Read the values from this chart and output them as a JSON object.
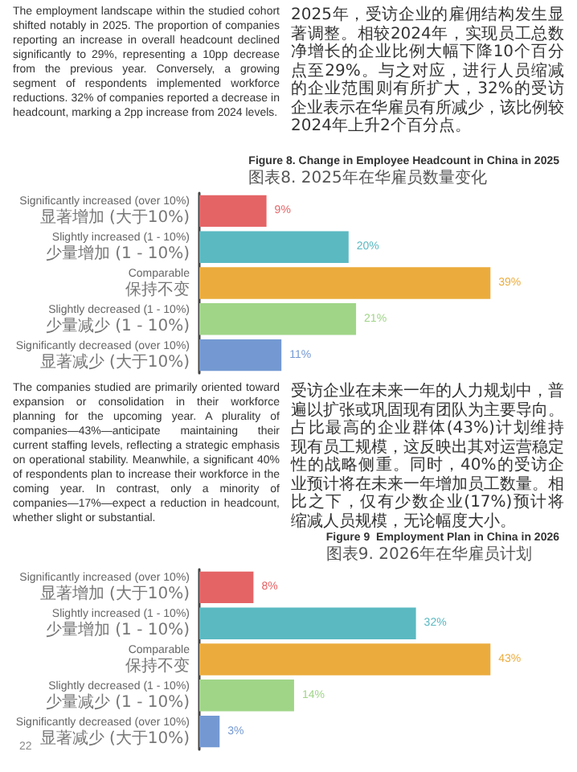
{
  "chart_data": [
    {
      "type": "bar",
      "orientation": "horizontal",
      "title": "Figure 8. Change in Employee Headcount in China in 2025",
      "subtitle": "图表8. 2025年在华雇员数量变化",
      "categories": [
        "Significantly increased (over 10%)\n显著增加 (大于10%)",
        "Slightly increased (1 - 10%)\n少量增加 (1 - 10%)",
        "Comparable\n保持不变",
        "Slightly decreased (1 - 10%)\n少量减少 (1 - 10%)",
        "Significantly decreased (over 10%)\n显著减少 (大于10%)"
      ],
      "values": [
        9,
        20,
        39,
        21,
        11
      ],
      "value_labels": [
        "9%",
        "20%",
        "39%",
        "21%",
        "11%"
      ],
      "colors": [
        "#e46466",
        "#5bb9c2",
        "#ebac3d",
        "#a0d588",
        "#7499d2"
      ],
      "annotations": [
        "The employment landscape within the studied cohort shifted notably in 2025. The proportion of companies reporting an increase in overall headcount declined significantly to 29%, representing a 10pp decrease from the previous year. Conversely, a growing segment of respondents implemented workforce reductions. 32% of companies reported a decrease in headcount, marking a 2pp increase from 2024 levels.",
        "2025年，受访企业的雇佣结构发生显著调整。相较2024年，实现员工总数净增长的企业比例大幅下降10个百分点至29%。与之对应，进行人员缩减的企业范围则有所扩大，32%的受访企业表示在华雇员有所减少，该比例较2024年上升2个百分点。"
      ]
    },
    {
      "type": "bar",
      "orientation": "horizontal",
      "title": "Figure 9  Employment Plan in China in 2026",
      "subtitle": "图表9. 2026年在华雇员计划",
      "categories": [
        "Significantly increased (over 10%)\n显著增加 (大于10%)",
        "Slightly increased (1 - 10%)\n少量增加 (1 - 10%)",
        "Comparable\n保持不变",
        "Slightly decreased (1 - 10%)\n少量减少 (1 - 10%)",
        "Significantly decreased (over 10%)\n显著减少 (大于10%)"
      ],
      "values": [
        8,
        32,
        43,
        14,
        3
      ],
      "value_labels": [
        "8%",
        "32%",
        "43%",
        "14%",
        "3%"
      ],
      "colors": [
        "#e46466",
        "#5bb9c2",
        "#ebac3d",
        "#a0d588",
        "#7499d2"
      ],
      "annotations": [
        "The companies studied are primarily oriented toward expansion or consolidation in their workforce planning for the upcoming year. A plurality of companies—43%—anticipate maintaining their current staffing levels, reflecting a strategic emphasis on operational stability. Meanwhile, a significant 40% of respondents plan to increase their workforce in the coming year. In contrast, only a minority of companies—17%—expect a reduction in headcount, whether slight or substantial.",
        "受访企业在未来一年的人力规划中，普遍以扩张或巩固现有团队为主要导向。占比最高的企业群体(43%)计划维持现有员工规模，这反映出其对运营稳定性的战略侧重。同时，40%的受访企业预计将在未来一年增加员工数量。相比之下，仅有少数企业(17%)预计将缩减人员规模，无论幅度大小。",
        "22"
      ]
    }
  ]
}
